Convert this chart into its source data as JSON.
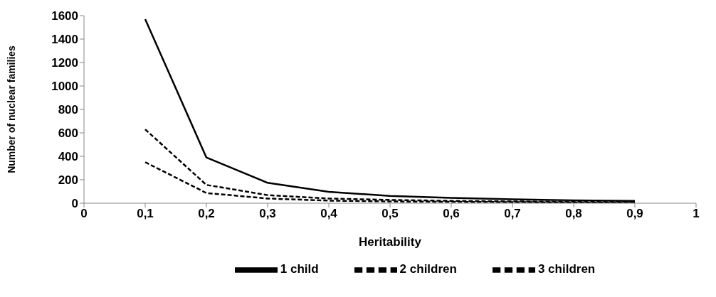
{
  "chart_data": {
    "type": "line",
    "xlabel": "Heritability",
    "ylabel": "Number of nuclear families",
    "x": [
      0.1,
      0.2,
      0.3,
      0.4,
      0.5,
      0.6,
      0.7,
      0.8,
      0.9
    ],
    "series": [
      {
        "name": "1 child",
        "color": "#000000",
        "line_style": "solid",
        "values": [
          1570,
          390,
          174,
          97,
          62,
          45,
          33,
          25,
          20
        ]
      },
      {
        "name": "2 children",
        "color": "#000000",
        "line_style": "dashed",
        "values": [
          630,
          156,
          69,
          40,
          28,
          20,
          15,
          12,
          10
        ]
      },
      {
        "name": "3 children",
        "color": "#000000",
        "line_style": "dashed",
        "values": [
          350,
          87,
          40,
          22,
          15,
          12,
          9,
          7,
          6
        ]
      }
    ],
    "xlim": [
      0,
      1
    ],
    "xticks": [
      0,
      {
        "value": 0.1,
        "label": "0,1"
      },
      {
        "value": 0.2,
        "label": "0,2"
      },
      {
        "value": 0.3,
        "label": "0,3"
      },
      {
        "value": 0.4,
        "label": "0,4"
      },
      {
        "value": 0.5,
        "label": "0,5"
      },
      {
        "value": 0.6,
        "label": "0,6"
      },
      {
        "value": 0.7,
        "label": "0,7"
      },
      {
        "value": 0.8,
        "label": "0,8"
      },
      {
        "value": 0.9,
        "label": "0,9"
      },
      1
    ],
    "ylim": [
      0,
      1600
    ],
    "yticks": [
      0,
      200,
      400,
      600,
      800,
      1000,
      1200,
      1400,
      1600
    ],
    "grid": false,
    "legend": "bottom",
    "marker": "none"
  }
}
